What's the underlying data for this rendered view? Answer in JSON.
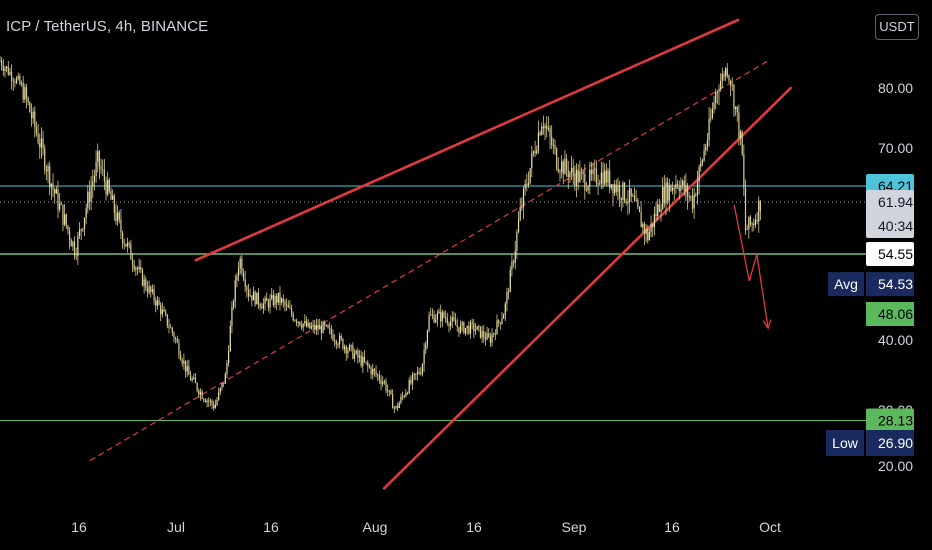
{
  "header": {
    "title": "ICP / TetherUS, 4h, BINANCE",
    "currency": "USDT"
  },
  "colors": {
    "background": "#000000",
    "candle": "#d9cc8e",
    "wedge": "#e0393e",
    "cyan_line": "#4fc3d9",
    "green_line": "#66bb6a",
    "white_line": "#ffffff",
    "badge_cyan": "#4fc3d9",
    "badge_green": "#5cb85c",
    "badge_navy": "#1a2a5e",
    "badge_gray": "#d1d4dc"
  },
  "chart_data": {
    "type": "candlestick",
    "symbol": "ICP / TetherUS",
    "interval": "4h",
    "exchange": "BINANCE",
    "x_ticks": [
      "16",
      "Jul",
      "16",
      "Aug",
      "16",
      "Sep",
      "16",
      "Oct"
    ],
    "y_ticks": [
      "80.00",
      "70.00",
      "40.00",
      "30.00",
      "20.00"
    ],
    "price_path": [
      [
        0,
        88
      ],
      [
        3,
        80
      ],
      [
        7,
        64
      ],
      [
        10,
        55
      ],
      [
        13,
        68
      ],
      [
        16,
        58
      ],
      [
        19,
        50
      ],
      [
        21,
        46
      ],
      [
        23,
        41
      ],
      [
        25,
        35
      ],
      [
        27,
        32
      ],
      [
        28.5,
        30.5
      ],
      [
        30,
        35
      ],
      [
        31,
        47
      ],
      [
        31.8,
        54
      ],
      [
        33,
        48
      ],
      [
        35,
        46
      ],
      [
        37,
        47
      ],
      [
        39,
        44
      ],
      [
        41,
        42
      ],
      [
        43,
        42
      ],
      [
        45,
        40
      ],
      [
        47,
        38
      ],
      [
        49,
        36
      ],
      [
        51,
        34
      ],
      [
        52.5,
        30
      ],
      [
        54,
        33
      ],
      [
        56,
        36
      ],
      [
        57,
        44
      ],
      [
        59,
        44
      ],
      [
        61,
        42
      ],
      [
        63,
        42
      ],
      [
        65,
        40
      ],
      [
        67,
        45
      ],
      [
        69,
        60
      ],
      [
        71,
        70
      ],
      [
        72,
        75
      ],
      [
        74,
        68
      ],
      [
        76,
        66
      ],
      [
        78,
        65
      ],
      [
        80,
        66
      ],
      [
        82,
        64
      ],
      [
        84,
        62
      ],
      [
        86,
        57
      ],
      [
        88,
        63
      ],
      [
        90,
        65
      ],
      [
        92,
        62
      ],
      [
        94,
        72
      ],
      [
        95,
        79
      ],
      [
        96.5,
        86
      ],
      [
        97.5,
        78
      ],
      [
        98.5,
        70
      ],
      [
        99,
        58
      ],
      [
        100,
        59
      ],
      [
        101,
        62
      ]
    ],
    "current_price": 61.94,
    "countdown": "40:34",
    "horizontal_levels": [
      {
        "price": 64.21,
        "label": "64.21",
        "style": "cyan"
      },
      {
        "price": 61.94,
        "label": "61.94",
        "style": "dotted"
      },
      {
        "price": 54.55,
        "label": "54.55",
        "style": "white"
      },
      {
        "price": 54.53,
        "label": "54.53",
        "tag": "Avg",
        "style": "green"
      },
      {
        "price": 28.13,
        "label": "28.13",
        "style": "green"
      }
    ],
    "extra_badges": [
      {
        "price": 48.06,
        "label": "48.06"
      },
      {
        "price": 26.9,
        "label": "26.90",
        "tag": "Low"
      }
    ],
    "drawings": [
      {
        "name": "wedge-upper-line",
        "from": [
          26,
          53.5
        ],
        "to": [
          98,
          100
        ]
      },
      {
        "name": "wedge-lower-line",
        "from": [
          51,
          16
        ],
        "to": [
          105,
          80
        ]
      },
      {
        "name": "channel-mid-dashed",
        "from": [
          12,
          21
        ],
        "to": [
          102,
          88
        ]
      },
      {
        "name": "projection-arrow",
        "points": [
          [
            97.5,
            61.5
          ],
          [
            99.5,
            50
          ],
          [
            100.5,
            54.5
          ],
          [
            102,
            42
          ]
        ]
      }
    ]
  }
}
